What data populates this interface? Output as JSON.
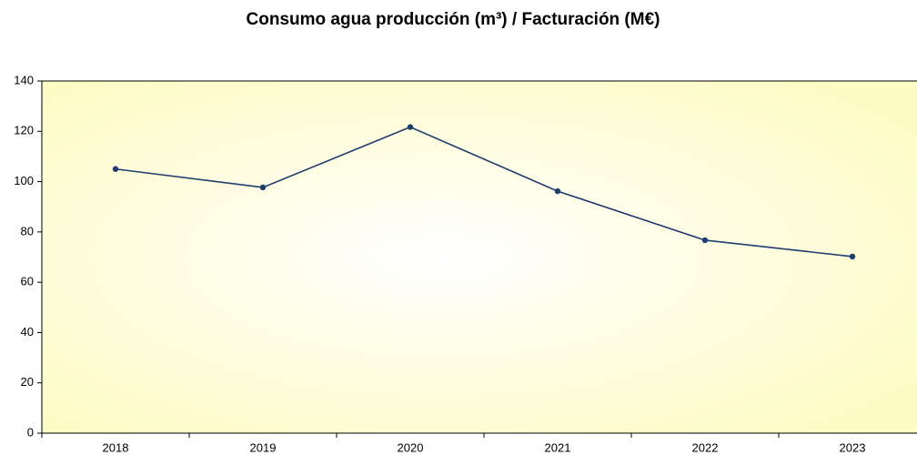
{
  "chart_data": {
    "type": "line",
    "title": "Consumo agua producción (m³) / Facturación (M€)",
    "categories": [
      "2018",
      "2019",
      "2020",
      "2021",
      "2022",
      "2023"
    ],
    "values": [
      105,
      97.7,
      121.7,
      96.2,
      76.7,
      70.2
    ],
    "color": "#1f3d6e",
    "ylim": [
      0,
      140
    ],
    "yticks": [
      0,
      20,
      40,
      60,
      80,
      100,
      120,
      140
    ],
    "grid": false
  }
}
